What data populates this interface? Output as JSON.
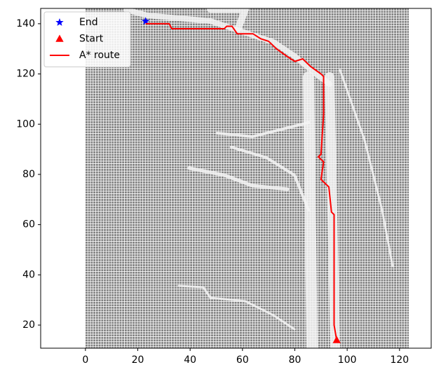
{
  "chart_data": {
    "type": "line",
    "xlim": [
      -17.1,
      132.1
    ],
    "ylim": [
      10.8,
      146.1
    ],
    "xticks": [
      0,
      20,
      40,
      60,
      80,
      100,
      120
    ],
    "yticks": [
      20,
      40,
      60,
      80,
      100,
      120,
      140
    ],
    "legend": "upper left",
    "series": [
      {
        "name": "End",
        "color": "#0000ff",
        "marker": "star",
        "x": [
          23
        ],
        "values": [
          141
        ]
      },
      {
        "name": "Start",
        "color": "#ff0000",
        "marker": "triangle",
        "x": [
          96
        ],
        "values": [
          14
        ]
      },
      {
        "name": "A* route",
        "color": "#ff0000",
        "marker": "line",
        "x": [
          23,
          32,
          33,
          53,
          54,
          56,
          58,
          64,
          67,
          70,
          73,
          77,
          80,
          83,
          86,
          90,
          91,
          91,
          90,
          89,
          91,
          90,
          93,
          94,
          95,
          95,
          96
        ],
        "values": [
          140,
          140,
          138,
          138,
          139,
          139,
          136,
          136,
          134,
          133,
          130,
          127,
          125,
          126,
          123,
          120,
          119,
          104,
          88,
          87,
          85,
          78,
          75,
          65,
          64,
          20,
          14
        ]
      }
    ]
  }
}
